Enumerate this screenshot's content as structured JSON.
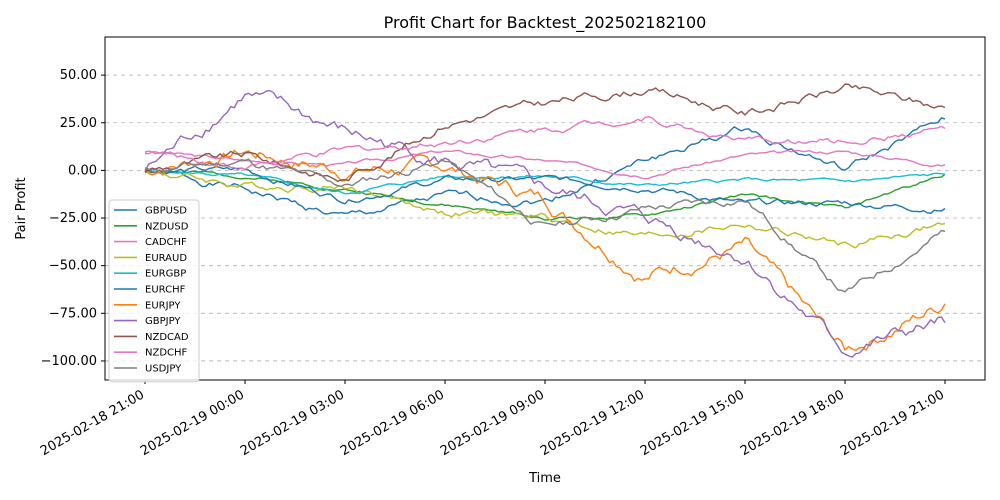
{
  "chart_data": {
    "type": "line",
    "title": "Profit Chart for Backtest_202502182100",
    "xlabel": "Time",
    "ylabel": "Pair Profit",
    "x_ticks": [
      "2025-02-18 21:00",
      "2025-02-19 00:00",
      "2025-02-19 03:00",
      "2025-02-19 06:00",
      "2025-02-19 09:00",
      "2025-02-19 12:00",
      "2025-02-19 15:00",
      "2025-02-19 18:00",
      "2025-02-19 21:00"
    ],
    "y_ticks": [
      "50.00",
      "25.00",
      "0.00",
      "−25.00",
      "−50.00",
      "−75.00",
      "−100.00"
    ],
    "ylim": [
      -110,
      70
    ],
    "grid": "horizontal dashed",
    "legend_position": "lower-left",
    "x": [
      "2025-02-18 21:00",
      "2025-02-19 00:00",
      "2025-02-19 03:00",
      "2025-02-19 06:00",
      "2025-02-19 09:00",
      "2025-02-19 12:00",
      "2025-02-19 15:00",
      "2025-02-19 18:00",
      "2025-02-19 21:00"
    ],
    "series": [
      {
        "name": "GBPUSD",
        "color": "#1f77b4",
        "values": [
          0,
          -10,
          -25,
          -14,
          -16,
          5,
          22,
          0,
          27
        ]
      },
      {
        "name": "NZDUSD",
        "color": "#2ca02c",
        "values": [
          0,
          -3,
          -10,
          -18,
          -25,
          -24,
          -13,
          -20,
          -2
        ]
      },
      {
        "name": "CADCHF",
        "color": "#e377c2",
        "values": [
          10,
          5,
          3,
          10,
          5,
          -2,
          8,
          10,
          3
        ]
      },
      {
        "name": "EURAUD",
        "color": "#bcbd22",
        "values": [
          0,
          -8,
          -8,
          -22,
          -25,
          -35,
          -28,
          -40,
          -28
        ]
      },
      {
        "name": "EURGBP",
        "color": "#17becf",
        "values": [
          0,
          -3,
          -12,
          -3,
          -3,
          -8,
          -5,
          -6,
          -2
        ]
      },
      {
        "name": "EURCHF",
        "color": "#1f77b4",
        "values": [
          0,
          0,
          -15,
          -5,
          -5,
          -8,
          -18,
          -17,
          -20
        ]
      },
      {
        "name": "EURJPY",
        "color": "#ff7f0e",
        "values": [
          0,
          10,
          0,
          2,
          -15,
          -55,
          -40,
          -95,
          -70
        ]
      },
      {
        "name": "GBPJPY",
        "color": "#9467bd",
        "values": [
          0,
          40,
          20,
          5,
          -10,
          -25,
          -45,
          -95,
          -80
        ]
      },
      {
        "name": "NZDCAD",
        "color": "#8c564b",
        "values": [
          0,
          8,
          -5,
          25,
          35,
          43,
          30,
          43,
          33
        ]
      },
      {
        "name": "NZDCHF",
        "color": "#e377c2",
        "values": [
          10,
          2,
          10,
          15,
          22,
          28,
          15,
          15,
          22
        ]
      },
      {
        "name": "USDJPY",
        "color": "#7f7f7f",
        "values": [
          0,
          5,
          -8,
          5,
          -30,
          -20,
          -15,
          -65,
          -32
        ]
      }
    ]
  }
}
